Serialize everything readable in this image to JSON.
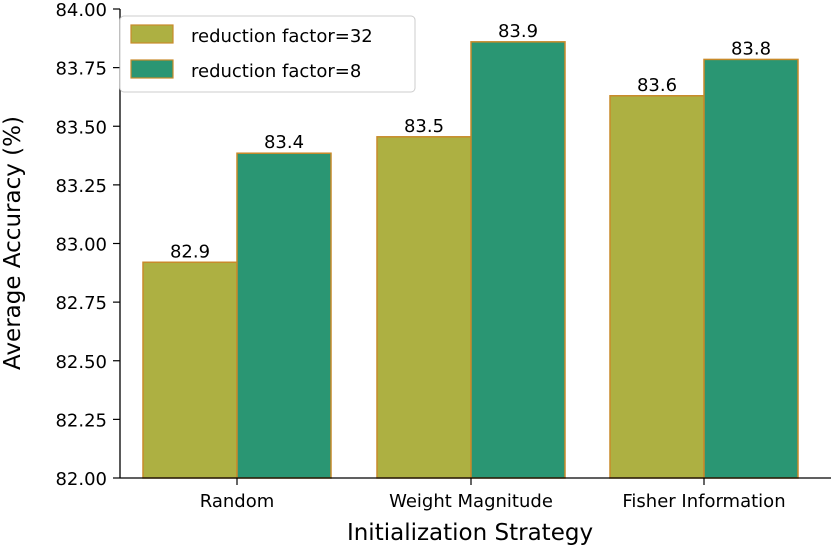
{
  "chart_data": {
    "type": "bar",
    "categories": [
      "Random",
      "Weight Magnitude",
      "Fisher Information"
    ],
    "series": [
      {
        "name": "reduction factor=32",
        "values": [
          82.92,
          83.455,
          83.63
        ],
        "labels": [
          "82.9",
          "83.5",
          "83.6"
        ],
        "color": "#adb042",
        "edge": "#c88a2a"
      },
      {
        "name": "reduction factor=8",
        "values": [
          83.385,
          83.86,
          83.785
        ],
        "labels": [
          "83.4",
          "83.9",
          "83.8"
        ],
        "color": "#2a9673",
        "edge": "#c88a2a"
      }
    ],
    "title": "",
    "xlabel": "Initialization Strategy",
    "ylabel": "Average Accuracy (%)",
    "ylim": [
      82.0,
      84.0
    ],
    "yticks": [
      "82.00",
      "82.25",
      "82.50",
      "82.75",
      "83.00",
      "83.25",
      "83.50",
      "83.75",
      "84.00"
    ],
    "legend_position": "top-left",
    "grid": false
  }
}
